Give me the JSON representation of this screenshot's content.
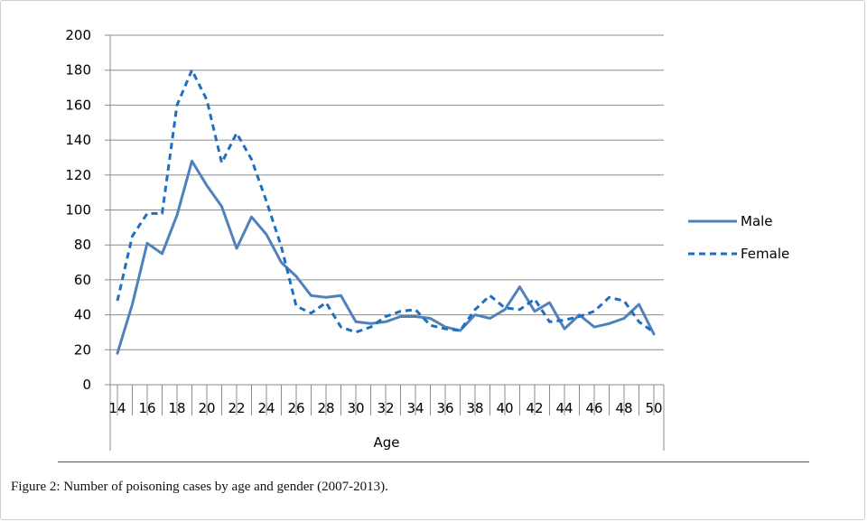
{
  "chart_data": {
    "type": "line",
    "xlabel": "Age",
    "ylabel": "",
    "ylim": [
      0,
      200
    ],
    "yticks": [
      0,
      20,
      40,
      60,
      80,
      100,
      120,
      140,
      160,
      180,
      200
    ],
    "xticks": [
      14,
      16,
      18,
      20,
      22,
      24,
      26,
      28,
      30,
      32,
      34,
      36,
      38,
      40,
      42,
      44,
      46,
      48,
      50
    ],
    "grid": "horizontal",
    "legend_position": "right",
    "x": [
      14,
      15,
      16,
      17,
      18,
      19,
      20,
      21,
      22,
      23,
      24,
      25,
      26,
      27,
      28,
      29,
      30,
      31,
      32,
      33,
      34,
      35,
      36,
      37,
      38,
      39,
      40,
      41,
      42,
      43,
      44,
      45,
      46,
      47,
      48,
      49,
      50
    ],
    "series": [
      {
        "name": "Male",
        "style": "solid",
        "color": "#4f81bd",
        "values": [
          18,
          46,
          81,
          75,
          97,
          128,
          114,
          102,
          78,
          96,
          86,
          70,
          62,
          51,
          50,
          51,
          36,
          35,
          36,
          39,
          39,
          38,
          33,
          31,
          40,
          38,
          43,
          56,
          42,
          47,
          32,
          40,
          33,
          35,
          38,
          46,
          29
        ]
      },
      {
        "name": "Female",
        "style": "dashed",
        "color": "#1f6fbf",
        "values": [
          48,
          85,
          98,
          98,
          160,
          180,
          163,
          127,
          144,
          129,
          105,
          79,
          45,
          41,
          47,
          33,
          30,
          33,
          39,
          42,
          43,
          34,
          32,
          31,
          43,
          51,
          44,
          43,
          49,
          36,
          37,
          39,
          42,
          50,
          48,
          36,
          30
        ]
      }
    ]
  },
  "caption": {
    "label": "Figure 2:",
    "text": " Number of poisoning cases by age and gender (2007-2013)."
  }
}
